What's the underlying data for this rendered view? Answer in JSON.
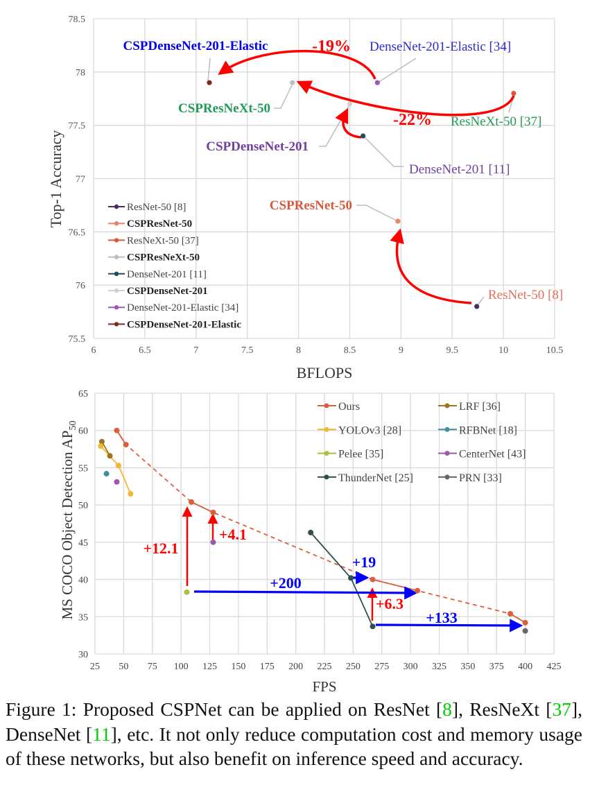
{
  "chart_data": [
    {
      "type": "scatter",
      "xlabel": "BFLOPS",
      "ylabel": "Top-1 Accuracy",
      "xlim": [
        6,
        10.5
      ],
      "ylim": [
        75.5,
        78.5
      ],
      "xticks": [
        "6",
        "6.5",
        "7",
        "7.5",
        "8",
        "8.5",
        "9",
        "9.5",
        "10",
        "10.5"
      ],
      "yticks": [
        "75.5",
        "76",
        "76.5",
        "77",
        "77.5",
        "78",
        "78.5"
      ],
      "grid": true,
      "legend_position": "bottom-left",
      "series": [
        {
          "name": "ResNet-50 [8]",
          "bold": false,
          "color": "#4b2c5e",
          "x": [
            9.74
          ],
          "y": [
            75.8
          ],
          "label": "ResNet-50 [8]",
          "label_color": "#e0705a"
        },
        {
          "name": "CSPResNet-50",
          "bold": true,
          "color": "#e8846a",
          "x": [
            8.97
          ],
          "y": [
            76.6
          ],
          "label": "CSPResNet-50",
          "label_color": "#d9583b"
        },
        {
          "name": "ResNeXt-50 [37]",
          "bold": false,
          "color": "#d9583b",
          "x": [
            10.1
          ],
          "y": [
            77.8
          ],
          "label": "ResNeXt-50 [37]",
          "label_color": "#1f9a55"
        },
        {
          "name": "CSPResNeXt-50",
          "bold": true,
          "color": "#bfbfbf",
          "x": [
            7.94
          ],
          "y": [
            77.9
          ],
          "label": "CSPResNeXt-50",
          "label_color": "#1f9a55"
        },
        {
          "name": "DenseNet-201 [11]",
          "bold": false,
          "color": "#1f4e5a",
          "x": [
            8.63
          ],
          "y": [
            77.4
          ],
          "label": "DenseNet-201 [11]",
          "label_color": "#7040a0"
        },
        {
          "name": "CSPDenseNet-201",
          "bold": true,
          "color": "#d0d0d0",
          "x": [
            8.5
          ],
          "y": [
            77.7
          ],
          "label": "CSPDenseNet-201",
          "label_color": "#7040a0"
        },
        {
          "name": "DenseNet-201-Elastic [34]",
          "bold": false,
          "color": "#9b59b6",
          "x": [
            8.77
          ],
          "y": [
            77.9
          ],
          "label": "DenseNet-201-Elastic [34]",
          "label_color": "#2a2ad0"
        },
        {
          "name": "CSPDenseNet-201-Elastic",
          "bold": true,
          "color": "#7b2c1c",
          "x": [
            7.13
          ],
          "y": [
            77.9
          ],
          "label": "CSPDenseNet-201-Elastic",
          "label_color": "#0000ee"
        }
      ],
      "annotations": [
        "-19%",
        "-22%"
      ]
    },
    {
      "type": "line",
      "xlabel": "FPS",
      "ylabel": "MS COCO Object Detection AP",
      "ylabel_sub": "50",
      "xlim": [
        25,
        425
      ],
      "ylim": [
        30,
        65
      ],
      "xticks": [
        "25",
        "50",
        "75",
        "100",
        "125",
        "150",
        "175",
        "200",
        "225",
        "250",
        "275",
        "300",
        "325",
        "350",
        "375",
        "400",
        "425"
      ],
      "yticks": [
        "30",
        "35",
        "40",
        "45",
        "50",
        "55",
        "60",
        "65"
      ],
      "grid": true,
      "legend_position": "top-right",
      "series": [
        {
          "name": "Ours",
          "color": "#d9603b",
          "x": [
            44,
            52,
            109,
            128,
            267,
            306,
            387,
            400
          ],
          "y": [
            60.0,
            58.1,
            50.4,
            49.0,
            40.0,
            38.5,
            35.4,
            34.2
          ]
        },
        {
          "name": "LRF [36]",
          "color": "#a0741a",
          "x": [
            31,
            38
          ],
          "y": [
            58.5,
            56.6
          ]
        },
        {
          "name": "YOLOv3 [28]",
          "color": "#f2b632",
          "x": [
            30,
            45.5,
            56
          ],
          "y": [
            57.9,
            55.3,
            51.5
          ]
        },
        {
          "name": "RFBNet [18]",
          "color": "#3f8fa0",
          "x": [
            35
          ],
          "y": [
            54.2
          ]
        },
        {
          "name": "Pelee [35]",
          "color": "#a8c23a",
          "x": [
            105
          ],
          "y": [
            38.3
          ]
        },
        {
          "name": "CenterNet [43]",
          "color": "#9b59a6",
          "x": [
            44,
            128
          ],
          "y": [
            53.1,
            45.0
          ]
        },
        {
          "name": "ThunderNet [25]",
          "color": "#2f4f4f",
          "x": [
            213,
            248,
            267
          ],
          "y": [
            46.3,
            40.2,
            33.7
          ]
        },
        {
          "name": "PRN [33]",
          "color": "#666666",
          "x": [
            400
          ],
          "y": [
            33.1
          ]
        }
      ],
      "annotations": [
        "+12.1",
        "+4.1",
        "+6.3",
        "+200",
        "+19",
        "+133"
      ]
    }
  ],
  "caption": {
    "segments": [
      {
        "text": "Figure 1:  Proposed CSPNet can be applied on ResNet [",
        "ref": false
      },
      {
        "text": "8",
        "ref": true
      },
      {
        "text": "], ResNeXt [",
        "ref": false
      },
      {
        "text": "37",
        "ref": true
      },
      {
        "text": "], DenseNet [",
        "ref": false
      },
      {
        "text": "11",
        "ref": true
      },
      {
        "text": "], etc.  It not only reduce computation cost and memory usage of these networks, but also benefit on inference speed and accuracy.",
        "ref": false
      }
    ]
  },
  "colors": {
    "arrow_red": "#ff0000",
    "arrow_blue": "#0000ff",
    "grid": "#d9d9d9",
    "ref": "#00cc00"
  }
}
